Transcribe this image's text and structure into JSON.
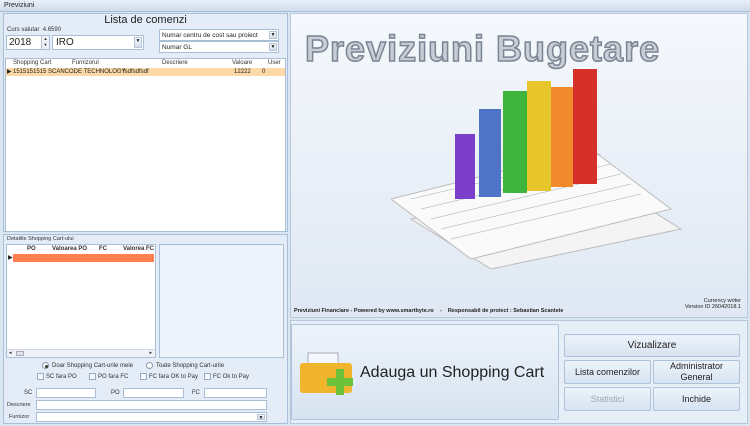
{
  "window": {
    "title": "Previziuni"
  },
  "left": {
    "title": "Lista de comenzi",
    "currency_label": "Curs valutar",
    "currency_value": "4.6590",
    "year": "2018",
    "company": "IRO",
    "filter1": "Numar centru de cost sau proiect",
    "filter2": "Numar GL",
    "grid": {
      "columns": [
        "Shopping Cart",
        "Furnizorul",
        "Descriere",
        "Valoare",
        "User"
      ],
      "rows": [
        [
          "1515151515",
          "SCANCODE TECHNOLOGY",
          "fsdfsdfsdf",
          "12222",
          "0"
        ]
      ]
    },
    "details": {
      "title": "Detaliile Shopping Cart-ului",
      "columns": [
        "PO",
        "Valoarea PO",
        "FC",
        "Valorea FC"
      ],
      "radio1": "Doar Shopping Cart-urile mele",
      "radio2": "Toate Shopping Cart-urile",
      "checks": [
        "SC fara PO",
        "PO fara FC",
        "FC fara OK to Pay",
        "FC Ok to Pay"
      ],
      "sc_label": "SC",
      "po_label": "PO",
      "fc_label": "FC",
      "descriere_label": "Descriere",
      "furnizor_label": "Furnizor"
    }
  },
  "right": {
    "banner": "Previziuni Bugetare",
    "footer": "Previziuni Financiare - Powered by www.smartbyte.ro    -    Responsabil de proiect : Sebastian Scanteie",
    "currency_writer": "Currency writer",
    "version": "Version ID 26042018.1",
    "add_cart": "Adauga un Shopping Cart",
    "buttons": {
      "vizualizare": "Vizualizare",
      "lista": "Lista comenzilor",
      "admin": "Administrator General",
      "statistici": "Statistici",
      "inchide": "Inchide"
    },
    "colors": {
      "row_selected": "#fcd9a6",
      "detail_row": "#ff7f4f",
      "accent": "#ff7f4f"
    }
  }
}
